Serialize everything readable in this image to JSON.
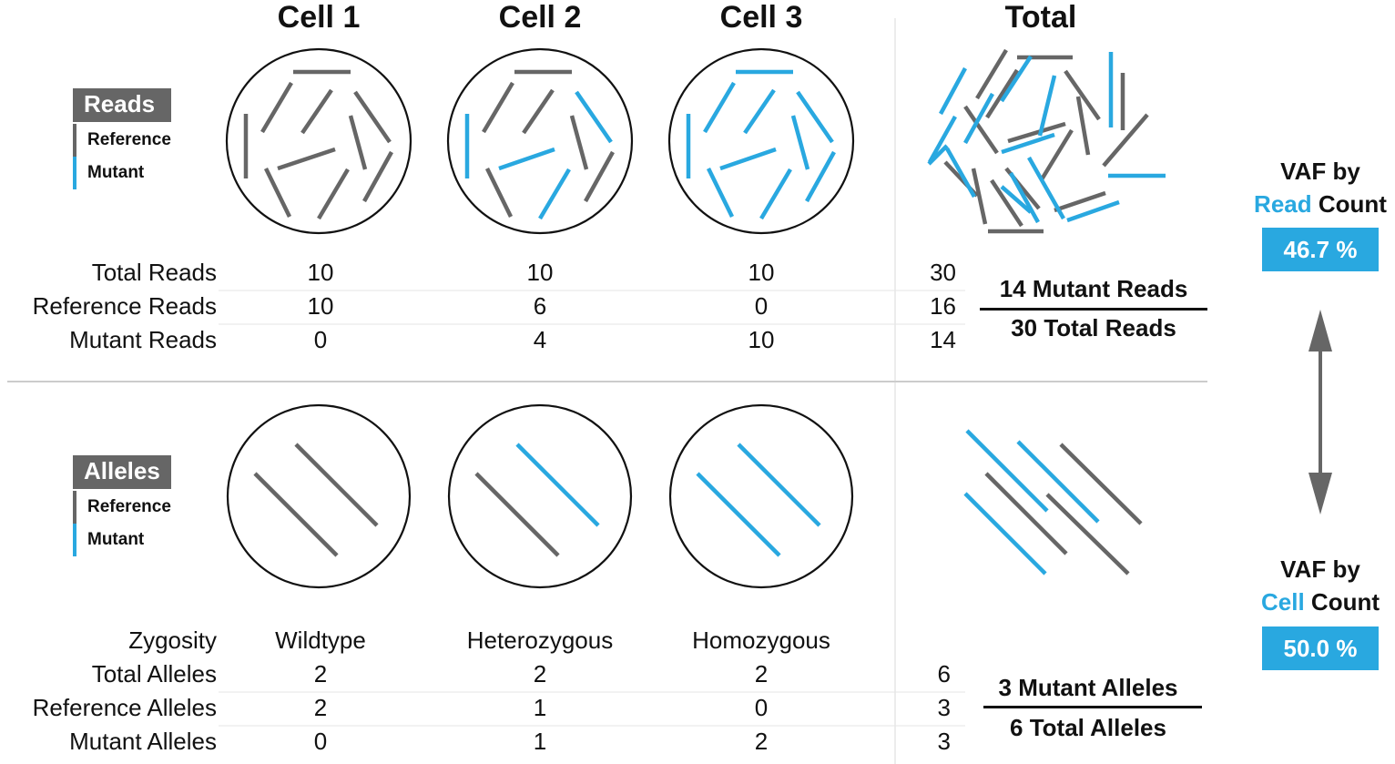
{
  "columns": {
    "cell1": "Cell 1",
    "cell2": "Cell 2",
    "cell3": "Cell 3",
    "total": "Total"
  },
  "reads_legend": {
    "title": "Reads",
    "reference": "Reference",
    "mutant": "Mutant"
  },
  "alleles_legend": {
    "title": "Alleles",
    "reference": "Reference",
    "mutant": "Mutant"
  },
  "reads_table": {
    "rows": [
      {
        "label": "Total Reads",
        "cell1": "10",
        "cell2": "10",
        "cell3": "10",
        "total": "30"
      },
      {
        "label": "Reference Reads",
        "cell1": "10",
        "cell2": "6",
        "cell3": "0",
        "total": "16"
      },
      {
        "label": "Mutant Reads",
        "cell1": "0",
        "cell2": "4",
        "cell3": "10",
        "total": "14"
      }
    ],
    "fraction_top": "14 Mutant Reads",
    "fraction_bottom": "30 Total Reads"
  },
  "alleles_table": {
    "zygosity": {
      "label": "Zygosity",
      "cell1": "Wildtype",
      "cell2": "Heterozygous",
      "cell3": "Homozygous"
    },
    "rows": [
      {
        "label": "Total Alleles",
        "cell1": "2",
        "cell2": "2",
        "cell3": "2",
        "total": "6"
      },
      {
        "label": "Reference Alleles",
        "cell1": "2",
        "cell2": "1",
        "cell3": "0",
        "total": "3"
      },
      {
        "label": "Mutant Alleles",
        "cell1": "0",
        "cell2": "1",
        "cell3": "2",
        "total": "3"
      }
    ],
    "fraction_top": "3 Mutant Alleles",
    "fraction_bottom": "6 Total Alleles"
  },
  "vaf_read": {
    "line1": "VAF by",
    "highlight": "Read",
    "rest": " Count",
    "value": "46.7 %"
  },
  "vaf_cell": {
    "line1": "VAF by",
    "highlight": "Cell",
    "rest": " Count",
    "value": "50.0 %"
  },
  "colors": {
    "reference": "#666666",
    "mutant": "#29a8e0",
    "accent": "#29a8e0"
  }
}
